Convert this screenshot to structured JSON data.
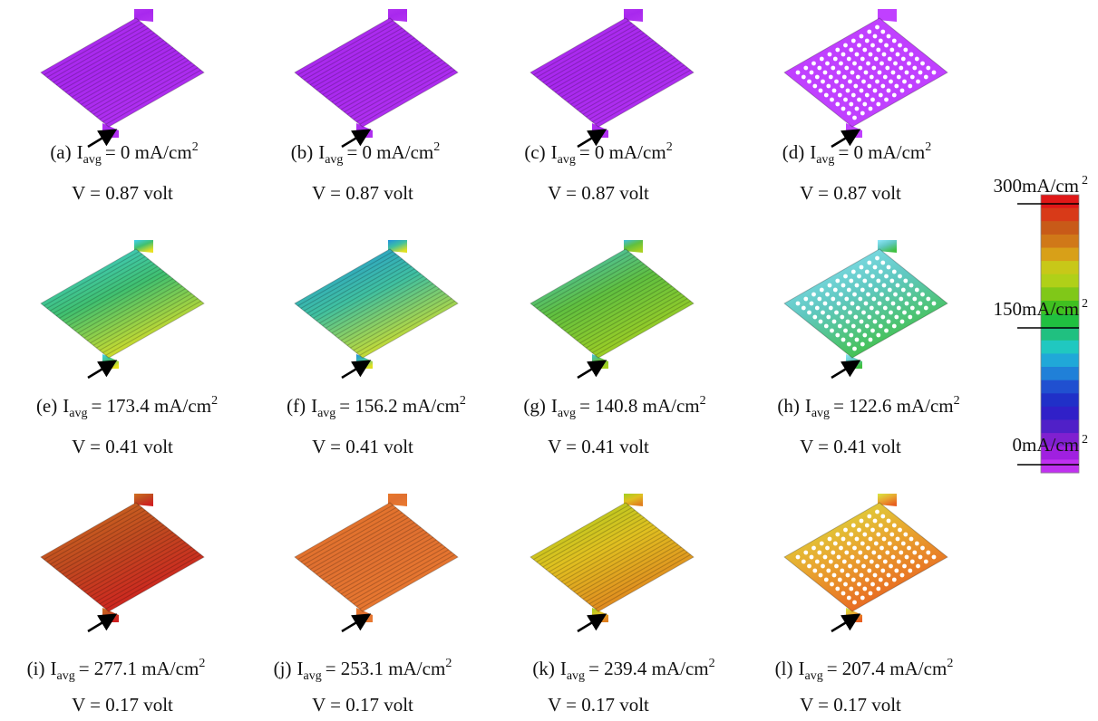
{
  "panels": [
    {
      "label": "(a)",
      "symbol": "I",
      "subscript": "avg",
      "current": "= 0 mA/cm",
      "power": "2",
      "voltage": "V = 0.87 volt"
    },
    {
      "label": "(b)",
      "symbol": "I",
      "subscript": "avg",
      "current": "= 0 mA/cm",
      "power": "2",
      "voltage": "V = 0.87 volt"
    },
    {
      "label": "(c)",
      "symbol": "I",
      "subscript": "avg",
      "current": "= 0 mA/cm",
      "power": "2",
      "voltage": "V = 0.87 volt"
    },
    {
      "label": "(d)",
      "symbol": "I",
      "subscript": "avg",
      "current": "= 0 mA/cm",
      "power": "2",
      "voltage": "V = 0.87 volt"
    },
    {
      "label": "(e)",
      "symbol": "I",
      "subscript": "avg",
      "current": "= 173.4 mA/cm",
      "power": "2",
      "voltage": "V = 0.41 volt"
    },
    {
      "label": "(f)",
      "symbol": "I",
      "subscript": "avg",
      "current": "= 156.2 mA/cm",
      "power": "2",
      "voltage": "V = 0.41 volt"
    },
    {
      "label": "(g)",
      "symbol": "I",
      "subscript": "avg",
      "current": "= 140.8 mA/cm",
      "power": "2",
      "voltage": "V = 0.41 volt"
    },
    {
      "label": "(h)",
      "symbol": "I",
      "subscript": "avg",
      "current": "= 122.6 mA/cm",
      "power": "2",
      "voltage": "V = 0.41 volt"
    },
    {
      "label": "(i)",
      "symbol": "I",
      "subscript": "avg",
      "current": "= 277.1 mA/cm",
      "power": "2",
      "voltage": "V = 0.17 volt"
    },
    {
      "label": "(j)",
      "symbol": "I",
      "subscript": "avg",
      "current": "= 253.1 mA/cm",
      "power": "2",
      "voltage": "V = 0.17 volt"
    },
    {
      "label": "(k)",
      "symbol": "I",
      "subscript": "avg",
      "current": "= 239.4 mA/cm",
      "power": "2",
      "voltage": "V = 0.17 volt"
    },
    {
      "label": "(l)",
      "symbol": "I",
      "subscript": "avg",
      "current": "= 207.4 mA/cm",
      "power": "2",
      "voltage": "V = 0.17 volt"
    }
  ],
  "colorbar": {
    "labels": [
      {
        "text": "300mA/cm",
        "power": "2"
      },
      {
        "text": "150mA/cm",
        "power": "2"
      },
      {
        "text": "0mA/cm",
        "power": "2"
      }
    ]
  }
}
